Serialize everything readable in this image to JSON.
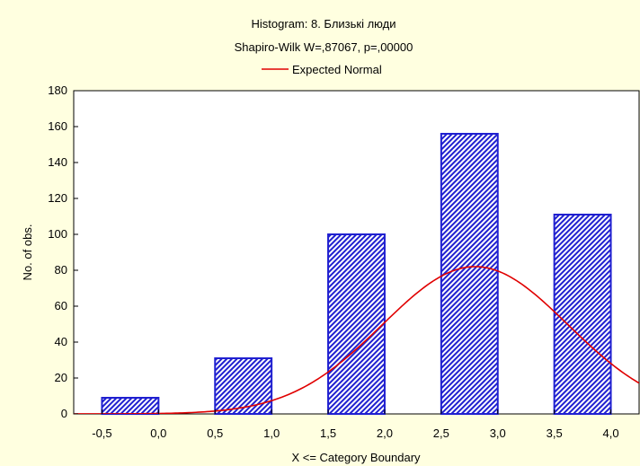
{
  "chart_data": {
    "type": "bar",
    "title": "Histogram: 8. Близькі люди",
    "subtitle": "Shapiro-Wilk W=,87067, p=,00000",
    "legend": [
      {
        "label": "Expected Normal",
        "color": "#e00000"
      }
    ],
    "xlabel": "X <= Category Boundary",
    "ylabel": "No. of obs.",
    "xlim": [
      -0.75,
      4.25
    ],
    "ylim": [
      0,
      180
    ],
    "x_ticks": [
      -0.5,
      0.0,
      0.5,
      1.0,
      1.5,
      2.0,
      2.5,
      3.0,
      3.5,
      4.0
    ],
    "x_tick_labels": [
      "-0,5",
      "0,0",
      "0,5",
      "1,0",
      "1,5",
      "2,0",
      "2,5",
      "3,0",
      "3,5",
      "4,0"
    ],
    "y_ticks": [
      0,
      20,
      40,
      60,
      80,
      100,
      120,
      140,
      160,
      180
    ],
    "y_tick_labels": [
      "0",
      "20",
      "40",
      "60",
      "80",
      "100",
      "120",
      "140",
      "160",
      "180"
    ],
    "bins": [
      {
        "from": -0.5,
        "to": 0.0,
        "value": 9
      },
      {
        "from": 0.5,
        "to": 1.0,
        "value": 31
      },
      {
        "from": 1.5,
        "to": 2.0,
        "value": 100
      },
      {
        "from": 2.5,
        "to": 3.0,
        "value": 156
      },
      {
        "from": 3.5,
        "to": 4.0,
        "value": 111
      }
    ],
    "expected_normal": {
      "name": "Expected Normal",
      "mean": 2.8,
      "sd": 0.82,
      "peak": 82
    },
    "grid": false,
    "bar_fill": "#2020d0",
    "bar_hatch_bg": "#ffffff",
    "curve_color": "#e00000",
    "background": "#ffffe0",
    "plot_background": "#ffffff"
  }
}
